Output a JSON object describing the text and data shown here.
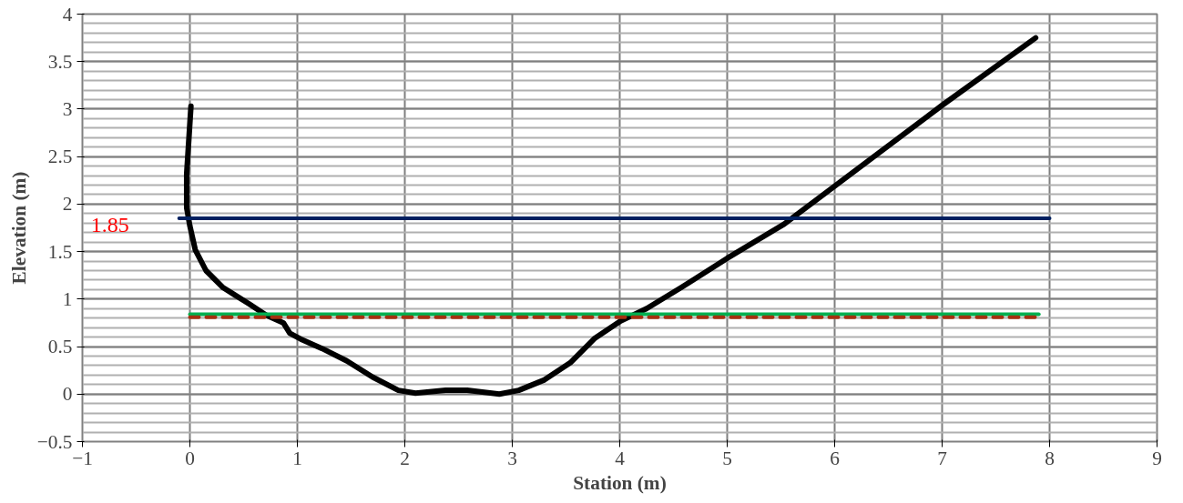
{
  "chart_data": {
    "type": "line",
    "xlabel": "Station (m)",
    "ylabel": "Elevation (m)",
    "xlim": [
      -1,
      9
    ],
    "ylim": [
      -0.5,
      4
    ],
    "xticks": [
      -1,
      0,
      1,
      2,
      3,
      4,
      5,
      6,
      7,
      8,
      9
    ],
    "yticks": [
      -0.5,
      0,
      0.5,
      1,
      1.5,
      2,
      2.5,
      3,
      3.5,
      4
    ],
    "grid": true,
    "line_style": "solid",
    "series": [
      {
        "color": "#000000",
        "x": [
          0.01,
          -0.03,
          -0.03,
          0.0,
          0.05,
          0.15,
          0.31,
          0.55,
          0.71,
          0.87,
          0.93,
          1.03,
          1.23,
          1.46,
          1.7,
          1.94,
          2.1,
          2.38,
          2.58,
          2.88,
          3.06,
          3.3,
          3.54,
          3.77,
          4.01,
          4.25,
          4.57,
          5.0,
          5.53,
          6.0,
          7.0,
          7.87
        ],
        "values": [
          3.03,
          2.32,
          1.96,
          1.77,
          1.52,
          1.3,
          1.12,
          0.95,
          0.83,
          0.75,
          0.64,
          0.58,
          0.48,
          0.35,
          0.18,
          0.04,
          0.01,
          0.04,
          0.04,
          0.0,
          0.04,
          0.15,
          0.33,
          0.59,
          0.77,
          0.9,
          1.12,
          1.43,
          1.79,
          2.19,
          3.04,
          3.75
        ]
      },
      {
        "color": "#002060",
        "x": [
          -0.1,
          8.0
        ],
        "values": [
          1.85,
          1.85
        ]
      },
      {
        "color": "#00b050",
        "x": [
          0.0,
          7.9
        ],
        "values": [
          0.84,
          0.84
        ]
      },
      {
        "color": "#a5300f",
        "x": [
          0.0,
          7.9
        ],
        "values": [
          0.81,
          0.81
        ],
        "line_style": "dashed"
      }
    ],
    "annotations": [
      {
        "text": "1.85",
        "x": -0.1,
        "y": 1.85
      }
    ]
  }
}
